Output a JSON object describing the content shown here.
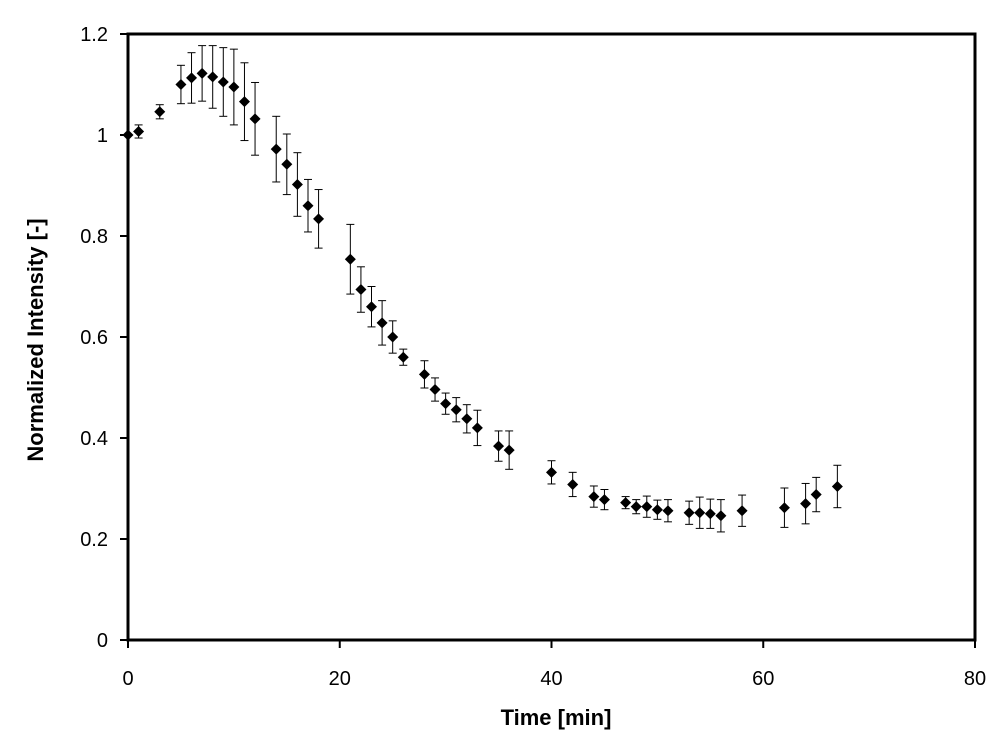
{
  "chart_data": {
    "type": "scatter",
    "xlabel": "Time [min]",
    "ylabel": "Normalized Intensity [-]",
    "xlim": [
      0,
      80
    ],
    "ylim": [
      0,
      1.2
    ],
    "xticks": [
      "0",
      "20",
      "40",
      "60",
      "80"
    ],
    "yticks": [
      "0",
      "0.2",
      "0.4",
      "0.6",
      "0.8",
      "1",
      "1.2"
    ],
    "grid": false,
    "legend": "none",
    "marker": "diamond",
    "color": "#000000",
    "x": [
      0,
      1,
      3,
      5,
      6,
      7,
      8,
      9,
      10,
      11,
      12,
      14,
      15,
      16,
      17,
      18,
      21,
      22,
      23,
      24,
      25,
      26,
      28,
      29,
      30,
      31,
      32,
      33,
      35,
      36,
      40,
      42,
      44,
      45,
      47,
      48,
      49,
      50,
      51,
      53,
      54,
      55,
      56,
      58,
      62,
      64,
      65,
      67
    ],
    "y": [
      1.0,
      1.007,
      1.046,
      1.1,
      1.113,
      1.122,
      1.115,
      1.105,
      1.095,
      1.066,
      1.032,
      0.972,
      0.942,
      0.902,
      0.86,
      0.834,
      0.754,
      0.694,
      0.66,
      0.628,
      0.6,
      0.56,
      0.526,
      0.496,
      0.468,
      0.456,
      0.438,
      0.42,
      0.384,
      0.376,
      0.332,
      0.308,
      0.284,
      0.278,
      0.272,
      0.264,
      0.264,
      0.258,
      0.256,
      0.252,
      0.252,
      0.25,
      0.246,
      0.256,
      0.262,
      0.27,
      0.288,
      0.304
    ],
    "yerr": [
      0.0,
      0.013,
      0.014,
      0.038,
      0.05,
      0.055,
      0.062,
      0.068,
      0.075,
      0.077,
      0.072,
      0.065,
      0.06,
      0.063,
      0.052,
      0.058,
      0.069,
      0.045,
      0.04,
      0.044,
      0.032,
      0.016,
      0.027,
      0.023,
      0.021,
      0.024,
      0.028,
      0.035,
      0.03,
      0.038,
      0.023,
      0.024,
      0.021,
      0.02,
      0.012,
      0.014,
      0.021,
      0.019,
      0.022,
      0.023,
      0.031,
      0.029,
      0.032,
      0.031,
      0.039,
      0.04,
      0.034,
      0.042
    ]
  }
}
